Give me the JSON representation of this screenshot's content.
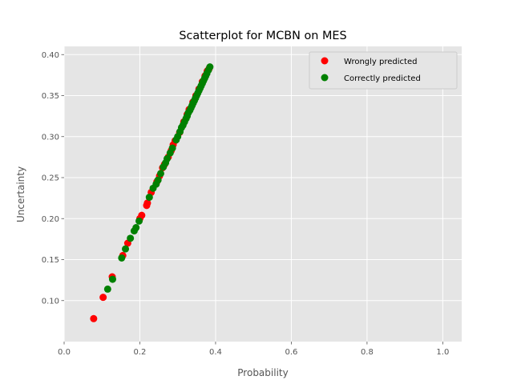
{
  "chart_data": {
    "type": "scatter",
    "title": "Scatterplot for MCBN on MES",
    "xlabel": "Probability",
    "ylabel": "Uncertainty",
    "xlim": [
      0.0,
      1.05
    ],
    "ylim": [
      0.05,
      0.41
    ],
    "xticks": [
      "0.0",
      "0.2",
      "0.4",
      "0.6",
      "0.8",
      "1.0"
    ],
    "yticks": [
      "0.10",
      "0.15",
      "0.20",
      "0.25",
      "0.30",
      "0.35",
      "0.40"
    ],
    "grid": true,
    "legend_position": "top-right",
    "series": [
      {
        "name": "Wrongly predicted",
        "color": "#ff0000",
        "points": [
          [
            0.078,
            0.078
          ],
          [
            0.103,
            0.104
          ],
          [
            0.127,
            0.129
          ],
          [
            0.155,
            0.155
          ],
          [
            0.168,
            0.17
          ],
          [
            0.2,
            0.2
          ],
          [
            0.205,
            0.204
          ],
          [
            0.218,
            0.216
          ],
          [
            0.22,
            0.219
          ],
          [
            0.23,
            0.232
          ],
          [
            0.245,
            0.245
          ],
          [
            0.252,
            0.252
          ],
          [
            0.26,
            0.262
          ],
          [
            0.265,
            0.266
          ],
          [
            0.275,
            0.275
          ],
          [
            0.283,
            0.283
          ],
          [
            0.288,
            0.29
          ],
          [
            0.293,
            0.295
          ],
          [
            0.305,
            0.305
          ],
          [
            0.316,
            0.318
          ],
          [
            0.325,
            0.327
          ],
          [
            0.33,
            0.333
          ],
          [
            0.34,
            0.342
          ],
          [
            0.348,
            0.35
          ],
          [
            0.356,
            0.358
          ],
          [
            0.365,
            0.367
          ],
          [
            0.372,
            0.374
          ],
          [
            0.378,
            0.38
          ],
          [
            0.383,
            0.383
          ]
        ]
      },
      {
        "name": "Correctly predicted",
        "color": "#008000",
        "points": [
          [
            0.115,
            0.114
          ],
          [
            0.128,
            0.126
          ],
          [
            0.152,
            0.152
          ],
          [
            0.162,
            0.163
          ],
          [
            0.175,
            0.176
          ],
          [
            0.185,
            0.185
          ],
          [
            0.19,
            0.189
          ],
          [
            0.198,
            0.197
          ],
          [
            0.225,
            0.226
          ],
          [
            0.235,
            0.237
          ],
          [
            0.243,
            0.242
          ],
          [
            0.248,
            0.247
          ],
          [
            0.255,
            0.255
          ],
          [
            0.262,
            0.263
          ],
          [
            0.268,
            0.268
          ],
          [
            0.272,
            0.273
          ],
          [
            0.28,
            0.28
          ],
          [
            0.286,
            0.286
          ],
          [
            0.296,
            0.296
          ],
          [
            0.3,
            0.3
          ],
          [
            0.306,
            0.306
          ],
          [
            0.31,
            0.311
          ],
          [
            0.314,
            0.314
          ],
          [
            0.318,
            0.318
          ],
          [
            0.322,
            0.322
          ],
          [
            0.325,
            0.325
          ],
          [
            0.328,
            0.329
          ],
          [
            0.332,
            0.332
          ],
          [
            0.335,
            0.335
          ],
          [
            0.338,
            0.338
          ],
          [
            0.341,
            0.341
          ],
          [
            0.344,
            0.344
          ],
          [
            0.347,
            0.347
          ],
          [
            0.35,
            0.35
          ],
          [
            0.353,
            0.353
          ],
          [
            0.356,
            0.356
          ],
          [
            0.359,
            0.359
          ],
          [
            0.362,
            0.362
          ],
          [
            0.365,
            0.365
          ],
          [
            0.368,
            0.368
          ],
          [
            0.371,
            0.371
          ],
          [
            0.374,
            0.374
          ],
          [
            0.377,
            0.377
          ],
          [
            0.381,
            0.381
          ],
          [
            0.385,
            0.385
          ]
        ]
      }
    ]
  }
}
